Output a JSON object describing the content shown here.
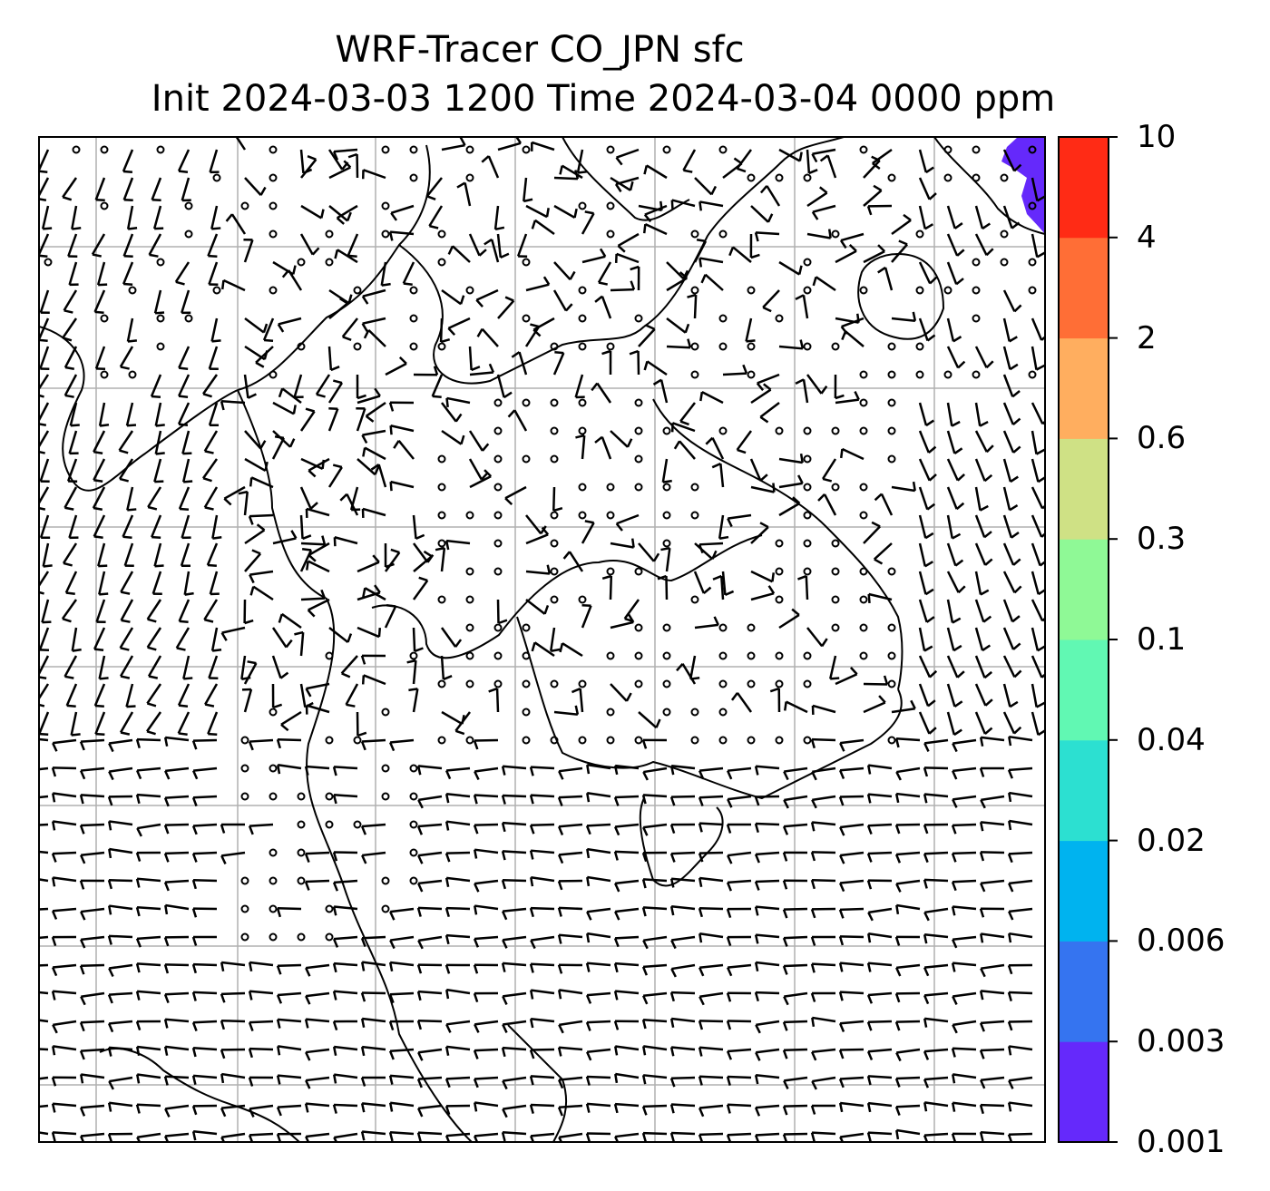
{
  "title": {
    "line1": "WRF-Tracer CO_JPN sfc",
    "line2": "Init 2024-03-03 1200 Time 2024-03-04 0000 ppm"
  },
  "colorbar": {
    "levels": [
      "0.001",
      "0.003",
      "0.006",
      "0.02",
      "0.04",
      "0.1",
      "0.3",
      "0.6",
      "2",
      "4",
      "10"
    ],
    "colors": [
      "#6529fb",
      "#3574f0",
      "#00b3ef",
      "#2ce0d1",
      "#61f8b3",
      "#8ff996",
      "#cfe185",
      "#ffae5f",
      "#ff6e36",
      "#ff2b15"
    ]
  },
  "map": {
    "gridlines": true,
    "wind_barbs": true,
    "tracer_field_color": "#6529fb",
    "line_color": "#000000",
    "grid_color": "#b0b0b0"
  }
}
